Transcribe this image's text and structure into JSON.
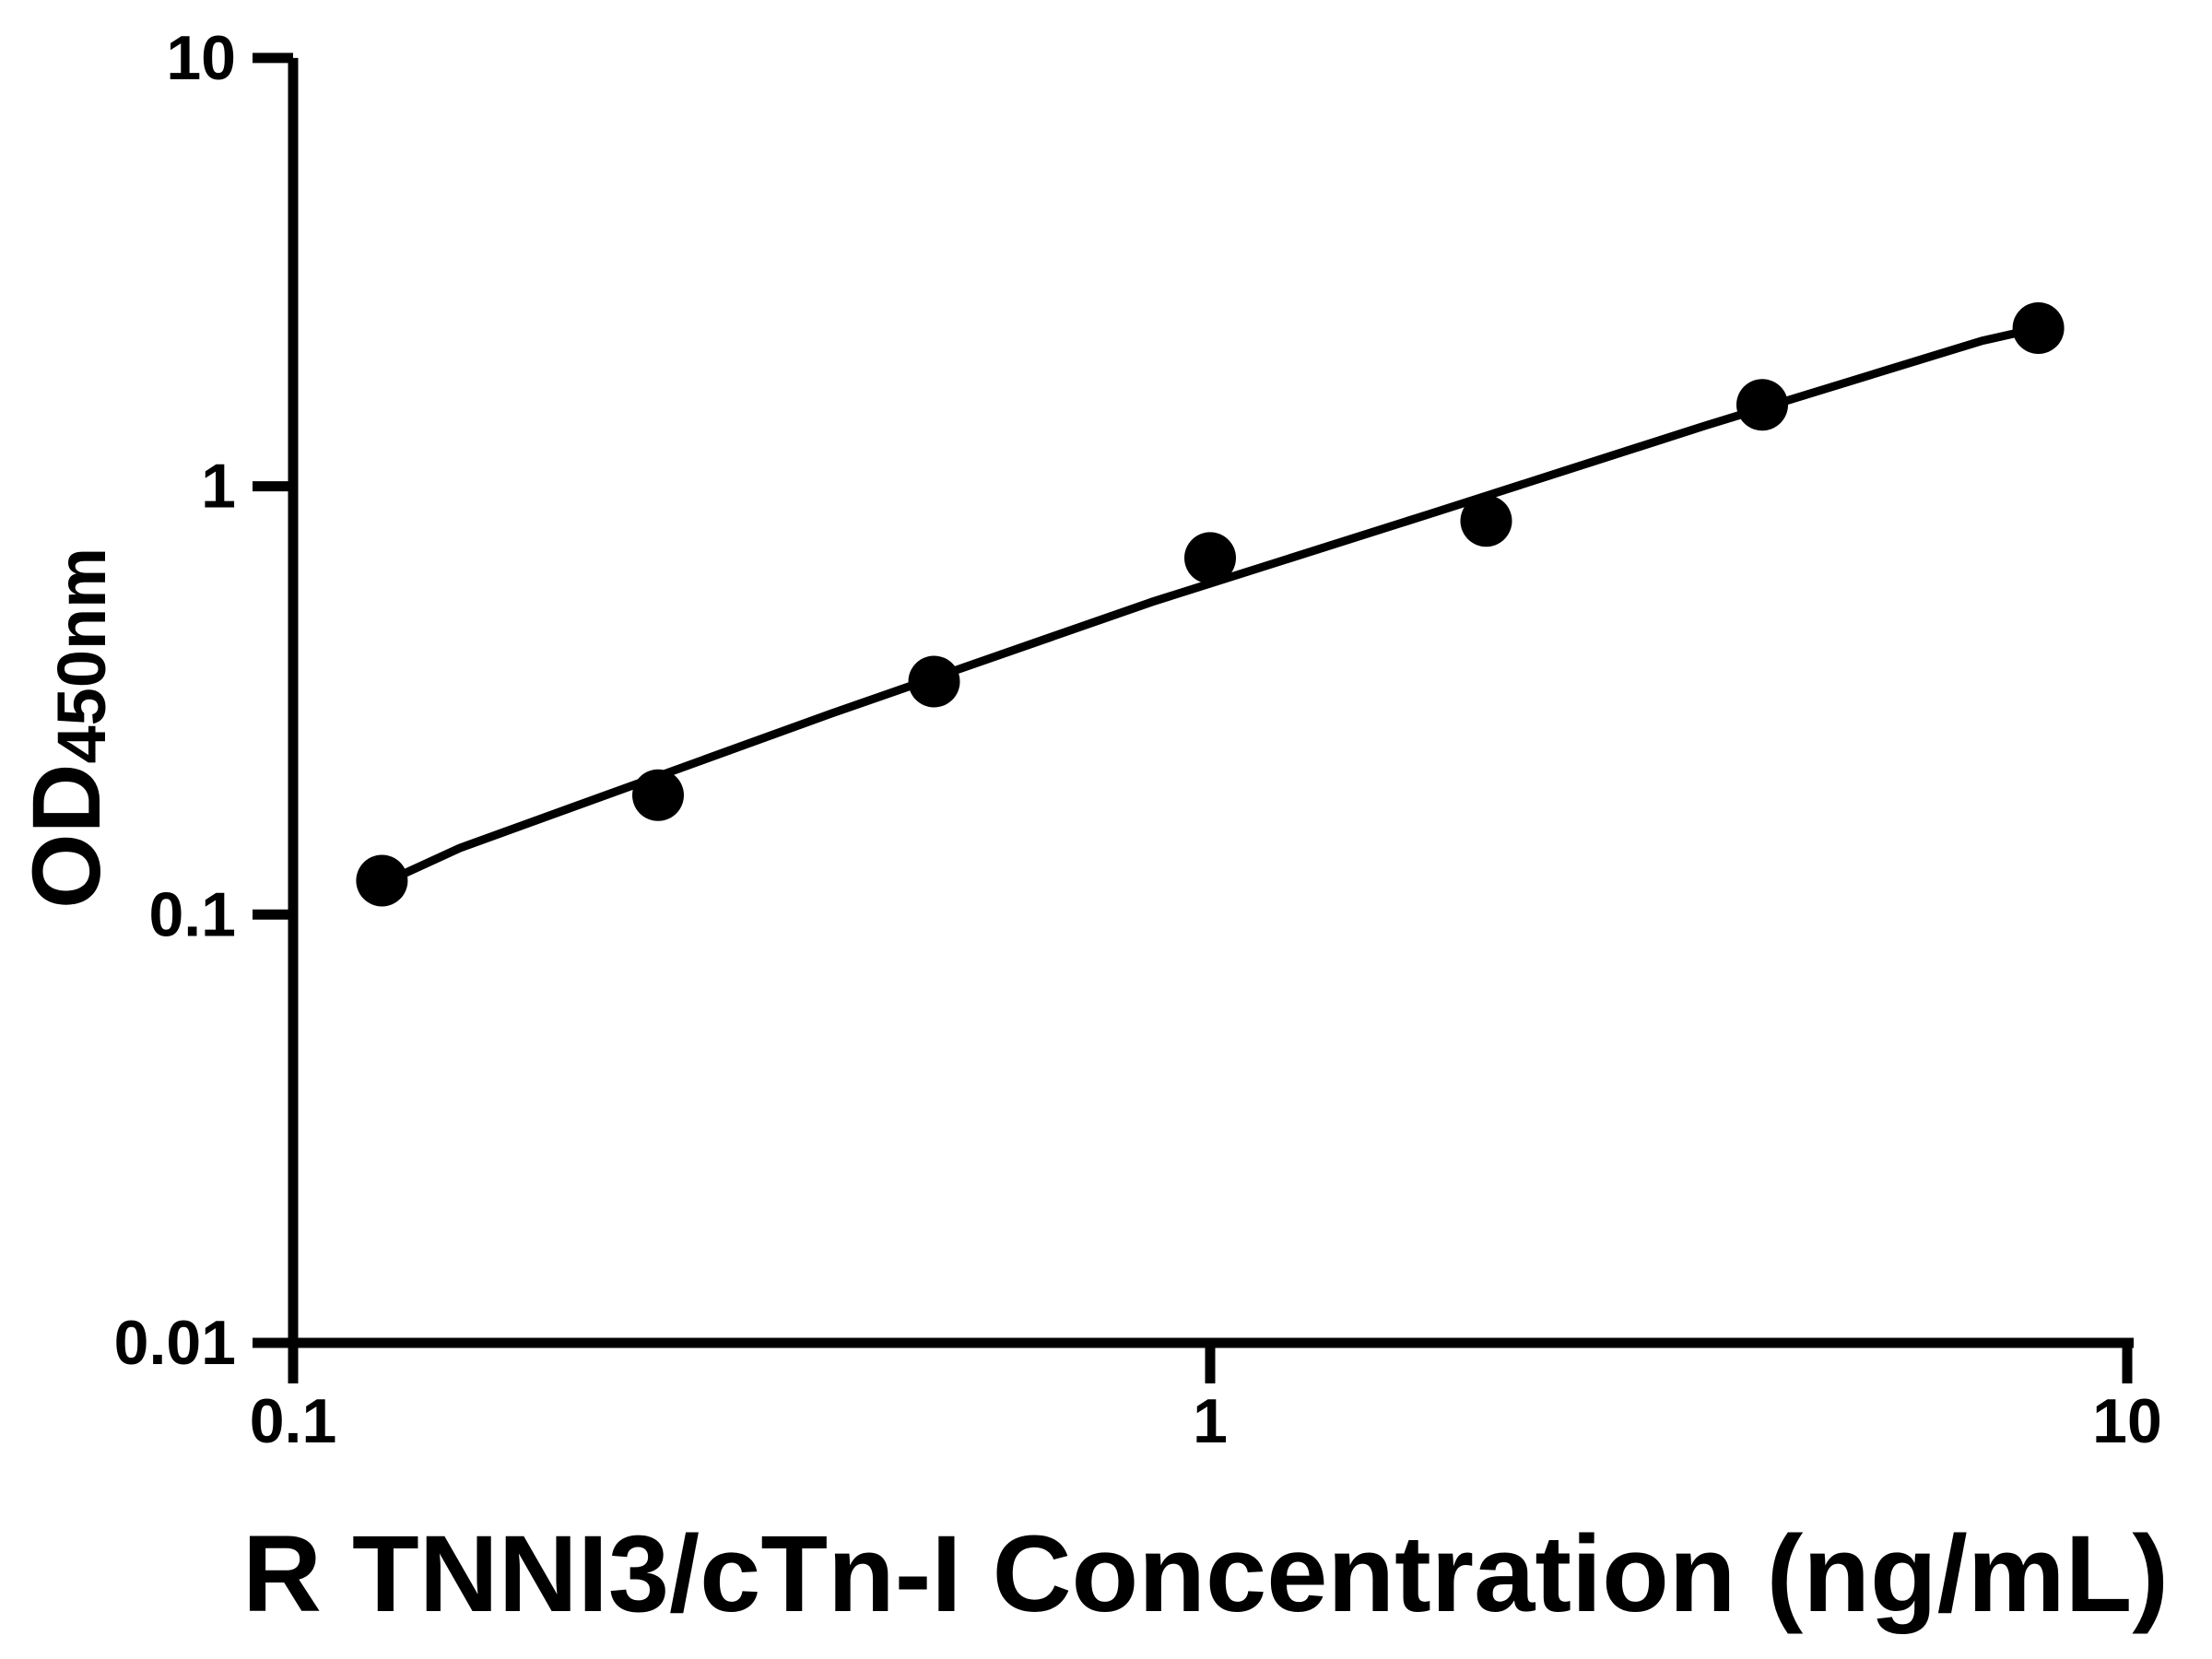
{
  "figure": {
    "background_color": "#ffffff",
    "ink_color": "#000000"
  },
  "chart_data": {
    "type": "scatter",
    "title": "",
    "xlabel": "R TNNI3/cTn-I Concentration (ng/mL)",
    "ylabel_base": "OD",
    "ylabel_subscript": "450nm",
    "x_scale": "log",
    "y_scale": "log",
    "xlim": [
      0.1,
      10
    ],
    "ylim": [
      0.01,
      10
    ],
    "grid": false,
    "legend": "none",
    "x_ticks": [
      {
        "value": 0.1,
        "label": "0.1"
      },
      {
        "value": 1,
        "label": "1"
      },
      {
        "value": 10,
        "label": "10"
      }
    ],
    "y_ticks": [
      {
        "value": 0.01,
        "label": "0.01"
      },
      {
        "value": 0.1,
        "label": "0.1"
      },
      {
        "value": 1,
        "label": "1"
      },
      {
        "value": 10,
        "label": "10"
      }
    ],
    "series": [
      {
        "name": "standard curve points",
        "marker": "filled-circle",
        "color": "#000000",
        "points": [
          {
            "x": 0.125,
            "y": 0.12
          },
          {
            "x": 0.25,
            "y": 0.19
          },
          {
            "x": 0.5,
            "y": 0.35
          },
          {
            "x": 1,
            "y": 0.68
          },
          {
            "x": 2,
            "y": 0.83
          },
          {
            "x": 4,
            "y": 1.55
          },
          {
            "x": 8,
            "y": 2.34
          }
        ]
      }
    ],
    "fit_line": {
      "name": "fitted curve",
      "color": "#000000",
      "points": [
        {
          "x": 0.125,
          "y": 0.118
        },
        {
          "x": 0.152,
          "y": 0.143
        },
        {
          "x": 0.385,
          "y": 0.294
        },
        {
          "x": 0.864,
          "y": 0.537
        },
        {
          "x": 1.731,
          "y": 0.86
        },
        {
          "x": 3.465,
          "y": 1.385
        },
        {
          "x": 6.937,
          "y": 2.184
        },
        {
          "x": 8.0,
          "y": 2.34
        }
      ]
    }
  }
}
